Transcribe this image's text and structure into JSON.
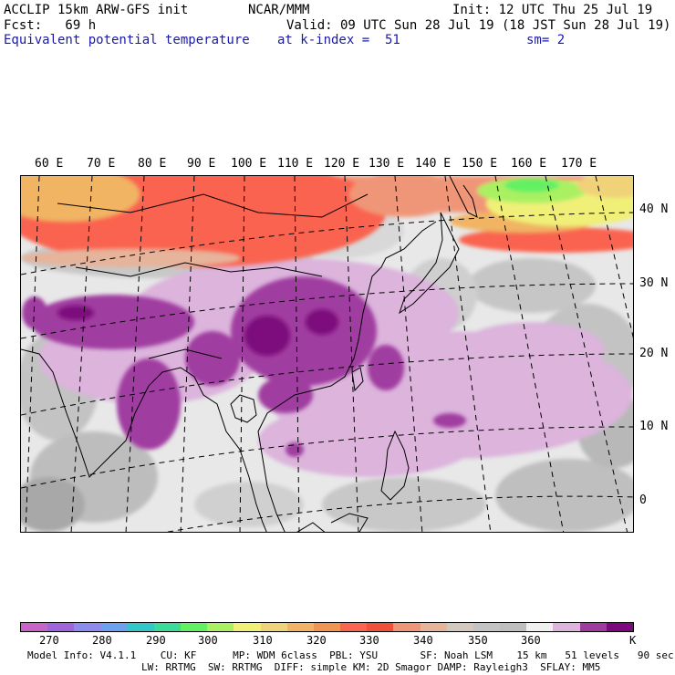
{
  "header": {
    "model": "ACCLIP 15km ARW-GFS init",
    "org": "NCAR/MMM",
    "init": "Init: 12 UTC Thu 25 Jul 19",
    "fcst": "Fcst:   69 h",
    "valid": "Valid: 09 UTC Sun 28 Jul 19 (18 JST Sun 28 Jul 19)",
    "field": "Equivalent potential temperature",
    "level": "at k-index =  51",
    "smooth": "sm= 2"
  },
  "map": {
    "lon_labels": [
      "60 E",
      "70 E",
      "80 E",
      "90 E",
      "100 E",
      "110 E",
      "120 E",
      "130 E",
      "140 E",
      "150 E",
      "160 E",
      "170 E"
    ],
    "lat_labels": [
      "40 N",
      "30 N",
      "20 N",
      "10 N",
      "0"
    ]
  },
  "colorbar": {
    "colors": [
      "#c864c8",
      "#a064dc",
      "#8c8cf0",
      "#6ea0f0",
      "#32c8c8",
      "#3cdc96",
      "#64f064",
      "#aaf064",
      "#f0f078",
      "#f0d278",
      "#f0b464",
      "#f09650",
      "#fa6450",
      "#f0503c",
      "#f09678",
      "#e6b49b",
      "#d2c8be",
      "#c3c3c3",
      "#bebebe",
      "#f0f0f0",
      "#dcb4dc",
      "#a03ca0",
      "#7d0a7d"
    ],
    "labels": [
      "270",
      "280",
      "290",
      "300",
      "310",
      "320",
      "330",
      "340",
      "350",
      "360",
      "K"
    ]
  },
  "footer": {
    "line1": "Model Info: V4.1.1    CU: KF      MP: WDM 6class  PBL: YSU       SF: Noah LSM    15 km   51 levels   90 sec",
    "line2": "LW: RRTMG  SW: RRTMG  DIFF: simple KM: 2D Smagor DAMP: Rayleigh3  SFLAY: MM5"
  }
}
